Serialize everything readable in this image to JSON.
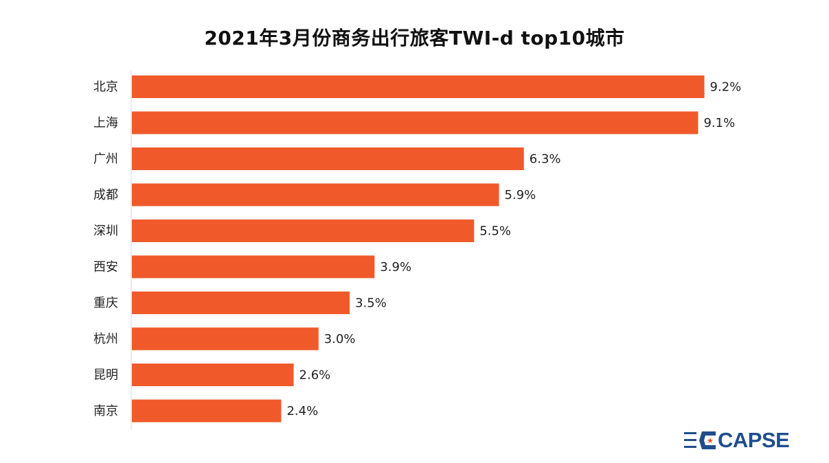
{
  "chart_data": {
    "type": "bar",
    "orientation": "horizontal",
    "title": "2021年3月份商务出行旅客TWI-d top10城市",
    "categories": [
      "北京",
      "上海",
      "广州",
      "成都",
      "深圳",
      "西安",
      "重庆",
      "杭州",
      "昆明",
      "南京"
    ],
    "values": [
      9.2,
      9.1,
      6.3,
      5.9,
      5.5,
      3.9,
      3.5,
      3.0,
      2.6,
      2.4
    ],
    "value_labels": [
      "9.2%",
      "9.1%",
      "6.3%",
      "5.9%",
      "5.5%",
      "3.9%",
      "3.5%",
      "3.0%",
      "2.6%",
      "2.4%"
    ],
    "unit": "%",
    "xlim": [
      0,
      10
    ],
    "grid": false,
    "legend": "none",
    "colors": {
      "bar": "#F05A2B"
    }
  },
  "logo": {
    "text": "CAPSE",
    "color": "#1F4E8C",
    "accent": "#E8572A"
  }
}
